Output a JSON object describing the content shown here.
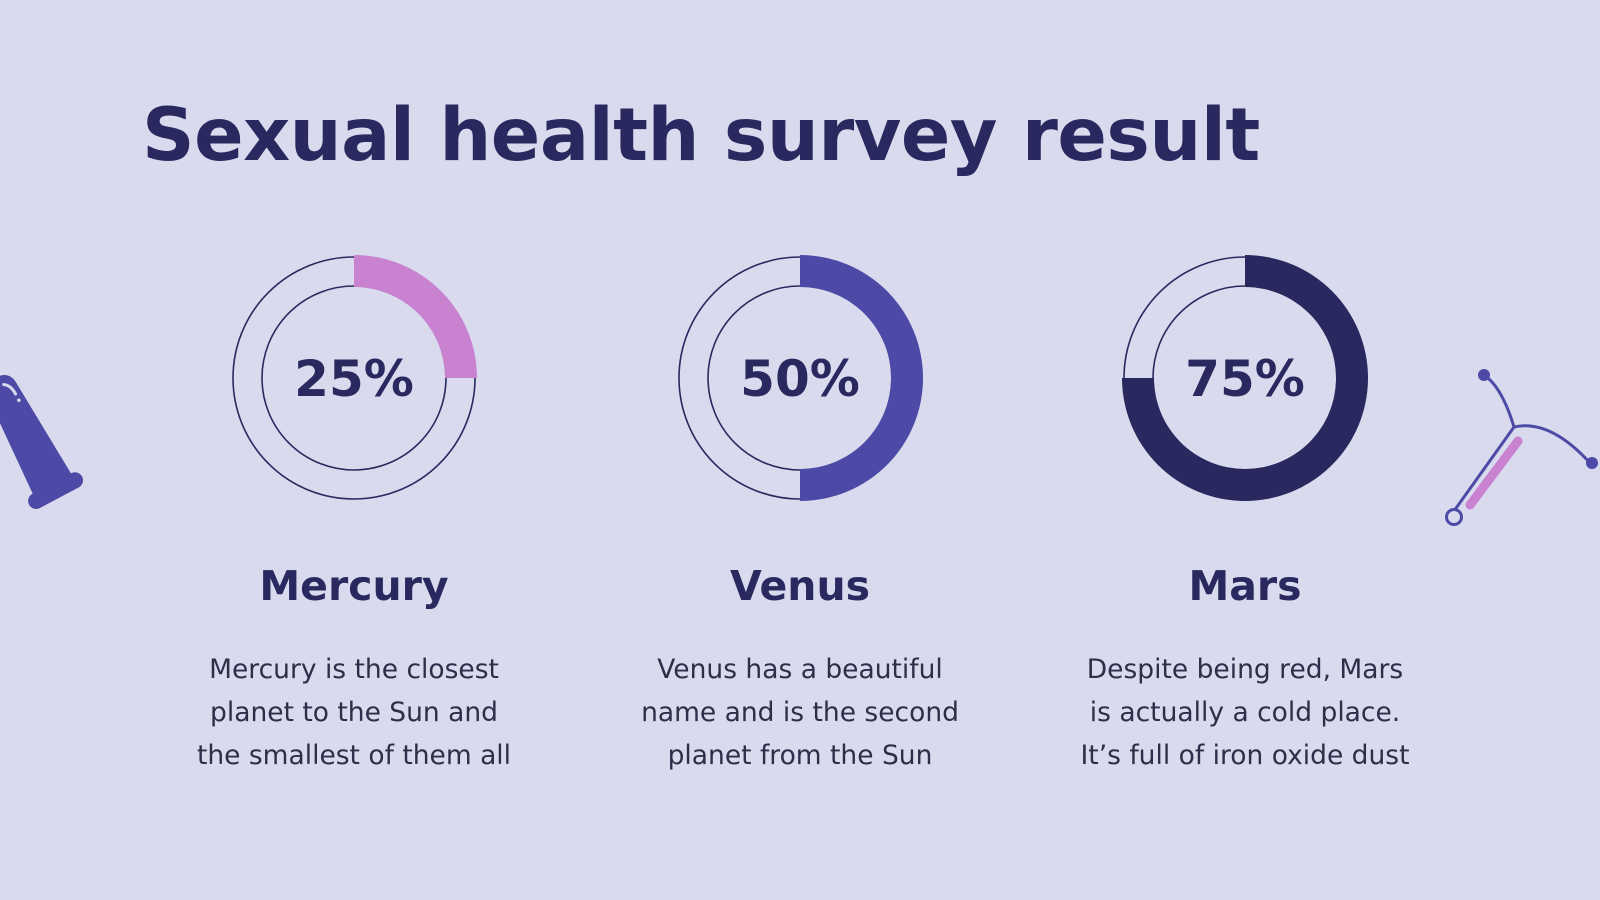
{
  "slide": {
    "title": "Sexual health survey result"
  },
  "colors": {
    "background": "#d9daed",
    "text_dark": "#29285f",
    "mercury": "#c882d0",
    "venus": "#4c4aa6",
    "mars": "#29285f"
  },
  "icons": {
    "left": "condom-icon",
    "right": "iud-icon"
  },
  "chart_data": {
    "type": "pie",
    "title": "",
    "categories": [
      "Mercury",
      "Venus",
      "Mars"
    ],
    "values": [
      25,
      50,
      75
    ],
    "unit": "%",
    "items": [
      {
        "name": "Mercury",
        "value": 25,
        "label": "25%",
        "color": "#c882d0",
        "description": [
          "Mercury is the closest",
          "planet to the Sun and",
          "the smallest of them all"
        ]
      },
      {
        "name": "Venus",
        "value": 50,
        "label": "50%",
        "color": "#4c4aa6",
        "description": [
          "Venus has a beautiful",
          "name and is the second",
          "planet from the Sun"
        ]
      },
      {
        "name": "Mars",
        "value": 75,
        "label": "75%",
        "color": "#29285f",
        "description": [
          "Despite being red, Mars",
          "is actually a cold place.",
          "It’s full of iron oxide dust"
        ]
      }
    ]
  }
}
